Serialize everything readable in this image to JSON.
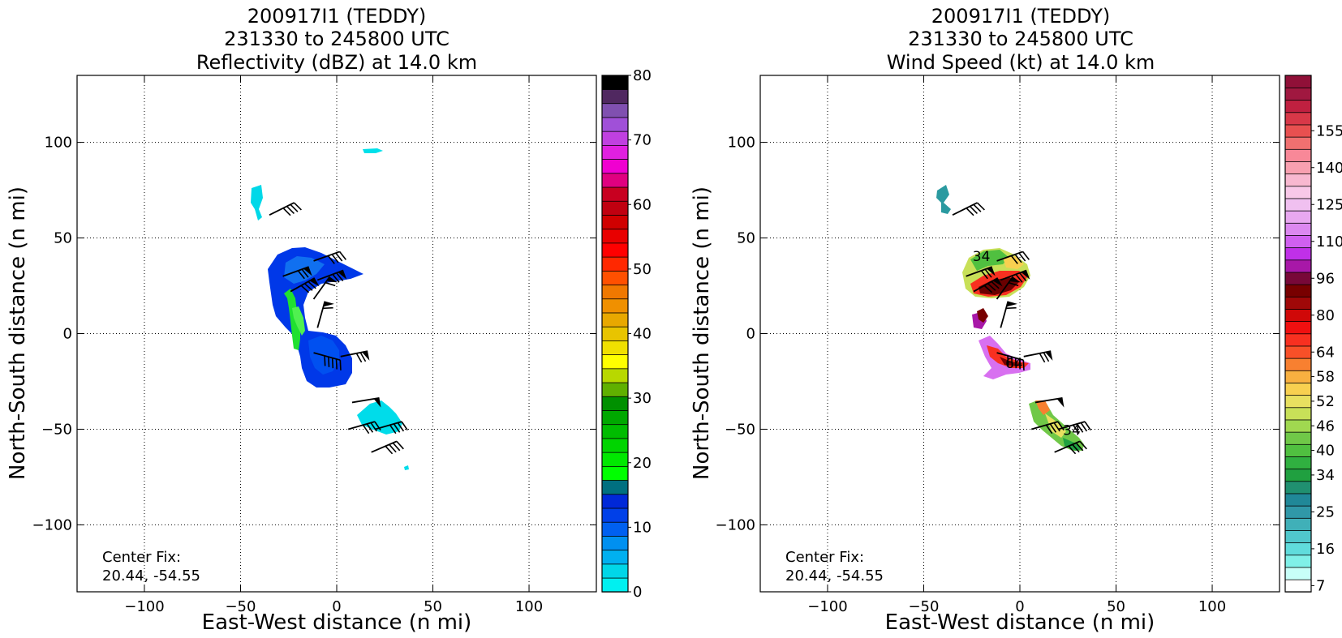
{
  "chart_data": [
    {
      "type": "heatmap",
      "title": [
        "200917I1 (TEDDY)",
        "231330 to 245800 UTC",
        "Reflectivity (dBZ) at 14.0 km"
      ],
      "xlabel": "East-West distance (n mi)",
      "ylabel": "North-South distance (n mi)",
      "xlim": [
        -135,
        135
      ],
      "ylim": [
        -135,
        135
      ],
      "xticks": [
        -100,
        -50,
        0,
        50,
        100
      ],
      "yticks": [
        -100,
        -50,
        0,
        50,
        100
      ],
      "grid": true,
      "annotation": [
        "Center Fix:",
        "20.44, -54.55"
      ],
      "colorbar": {
        "min": 0,
        "max": 80,
        "tick_labels": [
          "0",
          "10",
          "20",
          "30",
          "40",
          "50",
          "60",
          "70",
          "80"
        ],
        "tick_values": [
          0,
          10,
          20,
          30,
          40,
          50,
          60,
          70,
          80
        ],
        "colors": [
          "#00f0f0",
          "#00d6e8",
          "#00b0f0",
          "#0090f0",
          "#0060f0",
          "#0040e8",
          "#0028d8",
          "#007080",
          "#00ff00",
          "#00e800",
          "#00d400",
          "#00bc00",
          "#00a800",
          "#009000",
          "#60b000",
          "#b8d800",
          "#ffff00",
          "#f0e000",
          "#e8c400",
          "#e8a800",
          "#f09000",
          "#f07800",
          "#ff5000",
          "#ff2800",
          "#ff0000",
          "#e80000",
          "#d00000",
          "#c00010",
          "#c80020",
          "#e00080",
          "#f000d0",
          "#e020e0",
          "#c040e0",
          "#a050d8",
          "#8050b0",
          "#502860",
          "#000000"
        ]
      },
      "barbs": [
        {
          "x": -35,
          "y": 62,
          "u": 20,
          "v": 10,
          "flags": 0,
          "lines": 4
        },
        {
          "x": -12,
          "y": 38,
          "u": 14,
          "v": 5,
          "flags": 0,
          "lines": 4
        },
        {
          "x": -28,
          "y": 30,
          "u": 22,
          "v": 8,
          "flags": 1,
          "lines": 2
        },
        {
          "x": -10,
          "y": 28,
          "u": 16,
          "v": 6,
          "flags": 1,
          "lines": 2
        },
        {
          "x": -24,
          "y": 22,
          "u": 16,
          "v": 9,
          "flags": 1,
          "lines": 3
        },
        {
          "x": -12,
          "y": 18,
          "u": 10,
          "v": 14,
          "flags": 1,
          "lines": 1
        },
        {
          "x": -10,
          "y": 3,
          "u": 5,
          "v": 18,
          "flags": 1,
          "lines": 1
        },
        {
          "x": -12,
          "y": -10,
          "u": 18,
          "v": -5,
          "flags": 0,
          "lines": 5
        },
        {
          "x": 2,
          "y": -12,
          "u": 10,
          "v": 2,
          "flags": 1,
          "lines": 2
        },
        {
          "x": 8,
          "y": -36,
          "u": 12,
          "v": 2,
          "flags": 1,
          "lines": 0
        },
        {
          "x": 6,
          "y": -50,
          "u": 14,
          "v": 4,
          "flags": 0,
          "lines": 4
        },
        {
          "x": 20,
          "y": -50,
          "u": 14,
          "v": 4,
          "flags": 0,
          "lines": 4
        },
        {
          "x": 18,
          "y": -62,
          "u": 14,
          "v": 6,
          "flags": 0,
          "lines": 4
        }
      ]
    },
    {
      "type": "heatmap",
      "title": [
        "200917I1 (TEDDY)",
        "231330 to 245800 UTC",
        "Wind Speed (kt) at 14.0 km"
      ],
      "xlabel": "East-West distance (n mi)",
      "ylabel": "North-South distance (n mi)",
      "xlim": [
        -135,
        135
      ],
      "ylim": [
        -135,
        135
      ],
      "xticks": [
        -100,
        -50,
        0,
        50,
        100
      ],
      "yticks": [
        -100,
        -50,
        0,
        50,
        100
      ],
      "grid": true,
      "annotation": [
        "Center Fix:",
        "20.44, -54.55"
      ],
      "contour_labels": [
        {
          "text": "34",
          "x": -20,
          "y": 38
        },
        {
          "text": "64",
          "x": -3,
          "y": -18
        },
        {
          "text": "34",
          "x": 27,
          "y": -53
        }
      ],
      "colorbar": {
        "tick_labels": [
          "7",
          "16",
          "25",
          "34",
          "40",
          "46",
          "52",
          "58",
          "64",
          "80",
          "96",
          "110",
          "125",
          "140",
          "155"
        ],
        "label_band_index": [
          0,
          3,
          6,
          9,
          11,
          13,
          15,
          17,
          19,
          22,
          25,
          28,
          31,
          34,
          37
        ],
        "colors": [
          "#ffffff",
          "#c8fff8",
          "#80f0e8",
          "#60dcdc",
          "#50c8cc",
          "#40b0b8",
          "#3098a8",
          "#208898",
          "#209070",
          "#20a040",
          "#30b040",
          "#50c040",
          "#70c848",
          "#a0d850",
          "#c8e058",
          "#e8e060",
          "#f8d050",
          "#f8b040",
          "#f88030",
          "#f85028",
          "#f83020",
          "#f01010",
          "#d00808",
          "#a00808",
          "#780000",
          "#780838",
          "#a818a8",
          "#c030e8",
          "#d060f0",
          "#dc88f0",
          "#e8a8f0",
          "#f0c0f0",
          "#f8c8e8",
          "#f8b8d0",
          "#f8a0b0",
          "#f88898",
          "#f07070",
          "#e85050",
          "#d83848",
          "#c02040",
          "#a01840",
          "#901038"
        ]
      },
      "barbs": [
        {
          "x": -35,
          "y": 62,
          "u": 20,
          "v": 10,
          "flags": 0,
          "lines": 4
        },
        {
          "x": -12,
          "y": 38,
          "u": 14,
          "v": 5,
          "flags": 0,
          "lines": 4
        },
        {
          "x": -28,
          "y": 30,
          "u": 22,
          "v": 8,
          "flags": 1,
          "lines": 2
        },
        {
          "x": -10,
          "y": 28,
          "u": 16,
          "v": 6,
          "flags": 1,
          "lines": 2
        },
        {
          "x": -24,
          "y": 22,
          "u": 16,
          "v": 9,
          "flags": 1,
          "lines": 3
        },
        {
          "x": -12,
          "y": 18,
          "u": 10,
          "v": 14,
          "flags": 1,
          "lines": 1
        },
        {
          "x": -10,
          "y": 3,
          "u": 5,
          "v": 18,
          "flags": 1,
          "lines": 1
        },
        {
          "x": -12,
          "y": -10,
          "u": 18,
          "v": -5,
          "flags": 0,
          "lines": 5
        },
        {
          "x": 2,
          "y": -12,
          "u": 10,
          "v": 2,
          "flags": 1,
          "lines": 2
        },
        {
          "x": 8,
          "y": -36,
          "u": 12,
          "v": 2,
          "flags": 1,
          "lines": 0
        },
        {
          "x": 6,
          "y": -50,
          "u": 14,
          "v": 4,
          "flags": 0,
          "lines": 4
        },
        {
          "x": 20,
          "y": -50,
          "u": 14,
          "v": 4,
          "flags": 0,
          "lines": 4
        },
        {
          "x": 18,
          "y": -62,
          "u": 14,
          "v": 6,
          "flags": 0,
          "lines": 4
        }
      ]
    }
  ]
}
